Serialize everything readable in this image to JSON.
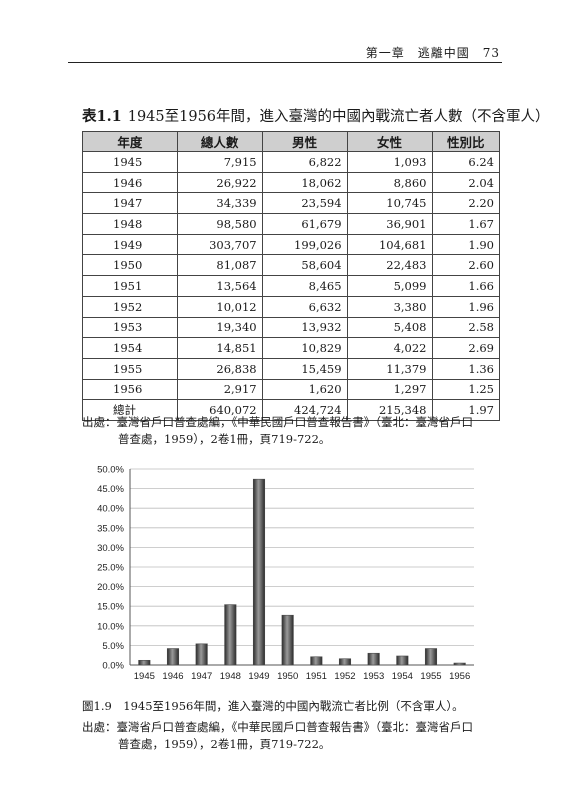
{
  "running_head": "第一章　逃離中國　73",
  "table": {
    "number": "表1.1",
    "title": "1945至1956年間，進入臺灣的中國內戰流亡者人數（不含軍人）",
    "headers": [
      "年度",
      "總人數",
      "男性",
      "女性",
      "性別比"
    ],
    "rows": [
      [
        "1945",
        "7,915",
        "6,822",
        "1,093",
        "6.24"
      ],
      [
        "1946",
        "26,922",
        "18,062",
        "8,860",
        "2.04"
      ],
      [
        "1947",
        "34,339",
        "23,594",
        "10,745",
        "2.20"
      ],
      [
        "1948",
        "98,580",
        "61,679",
        "36,901",
        "1.67"
      ],
      [
        "1949",
        "303,707",
        "199,026",
        "104,681",
        "1.90"
      ],
      [
        "1950",
        "81,087",
        "58,604",
        "22,483",
        "2.60"
      ],
      [
        "1951",
        "13,564",
        "8,465",
        "5,099",
        "1.66"
      ],
      [
        "1952",
        "10,012",
        "6,632",
        "3,380",
        "1.96"
      ],
      [
        "1953",
        "19,340",
        "13,932",
        "5,408",
        "2.58"
      ],
      [
        "1954",
        "14,851",
        "10,829",
        "4,022",
        "2.69"
      ],
      [
        "1955",
        "26,838",
        "15,459",
        "11,379",
        "1.36"
      ],
      [
        "1956",
        "2,917",
        "1,620",
        "1,297",
        "1.25"
      ],
      [
        "總計",
        "640,072",
        "424,724",
        "215,348",
        "1.97"
      ]
    ]
  },
  "source1": {
    "line1": "出處：臺灣省戶口普查處編，《中華民國戶口普查報告書》（臺北：臺灣省戶口",
    "line2": "普查處，1959），2卷1冊，頁719-722。"
  },
  "figure": {
    "caption": "圖1.9　1945至1956年間，進入臺灣的中國內戰流亡者比例（不含軍人）。",
    "source_line1": "出處：臺灣省戶口普查處編，《中華民國戶口普查報告書》（臺北：臺灣省戶口",
    "source_line2": "普查處，1959），2卷1冊，頁719-722。"
  },
  "chart_data": {
    "type": "bar",
    "categories": [
      "1945",
      "1946",
      "1947",
      "1948",
      "1949",
      "1950",
      "1951",
      "1952",
      "1953",
      "1954",
      "1955",
      "1956"
    ],
    "values": [
      1.2,
      4.2,
      5.4,
      15.4,
      47.4,
      12.7,
      2.1,
      1.6,
      3.0,
      2.3,
      4.2,
      0.5
    ],
    "y_unit": "%",
    "yticks": [
      "0.0%",
      "5.0%",
      "10.0%",
      "15.0%",
      "20.0%",
      "25.0%",
      "30.0%",
      "35.0%",
      "40.0%",
      "45.0%",
      "50.0%"
    ],
    "ylim": [
      0,
      50
    ],
    "grid": true,
    "bar_color": "#4a4a4a"
  }
}
